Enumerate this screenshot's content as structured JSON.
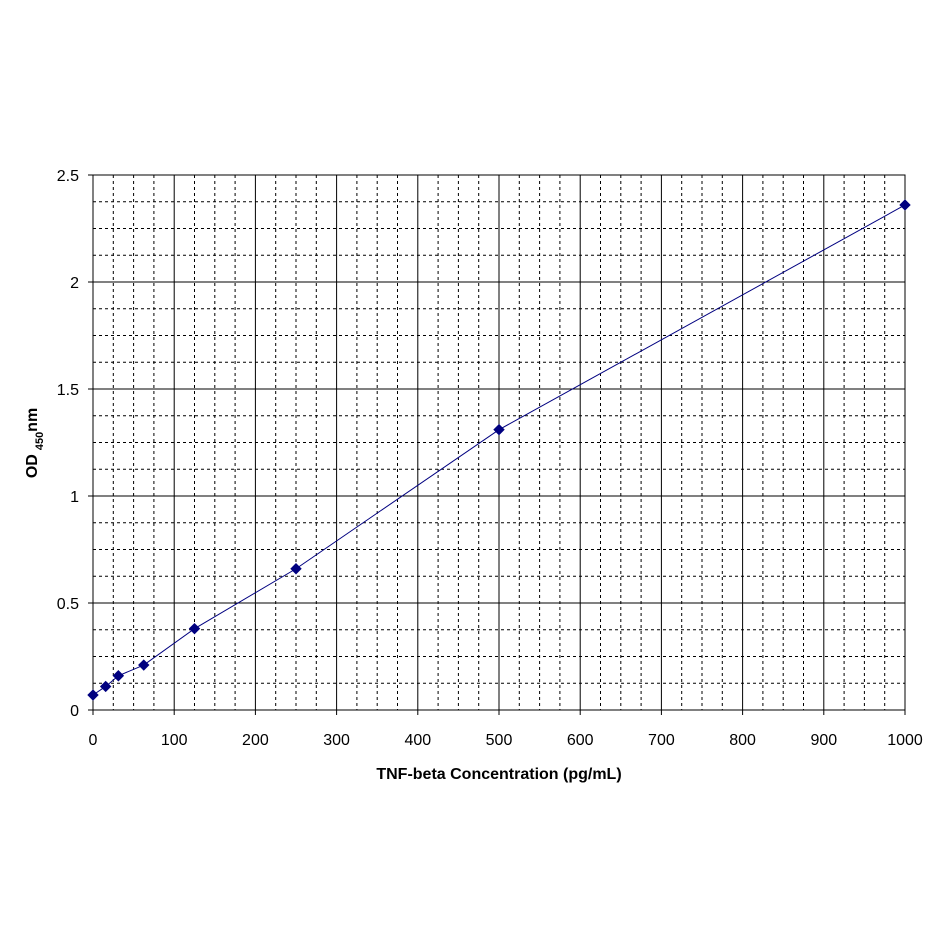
{
  "chart_data": {
    "type": "line",
    "title": "",
    "xlabel": "TNF-beta Concentration (pg/mL)",
    "ylabel": {
      "main": "OD",
      "subscript": "450",
      "unit": "nm"
    },
    "xlim": [
      0,
      1000
    ],
    "ylim": [
      0,
      2.5
    ],
    "x_ticks": [
      0,
      100,
      200,
      300,
      400,
      500,
      600,
      700,
      800,
      900,
      1000
    ],
    "y_ticks": [
      0,
      0.5,
      1,
      1.5,
      2,
      2.5
    ],
    "grid": {
      "major": true,
      "minor_dashed": true,
      "minor_divisions": 4
    },
    "legend": "none",
    "series": [
      {
        "color": "#000080",
        "marker": "diamond",
        "x": [
          0,
          15.6,
          31.25,
          62.5,
          125,
          250,
          500,
          1000
        ],
        "y": [
          0.07,
          0.11,
          0.16,
          0.21,
          0.38,
          0.66,
          1.31,
          2.36
        ]
      }
    ]
  }
}
